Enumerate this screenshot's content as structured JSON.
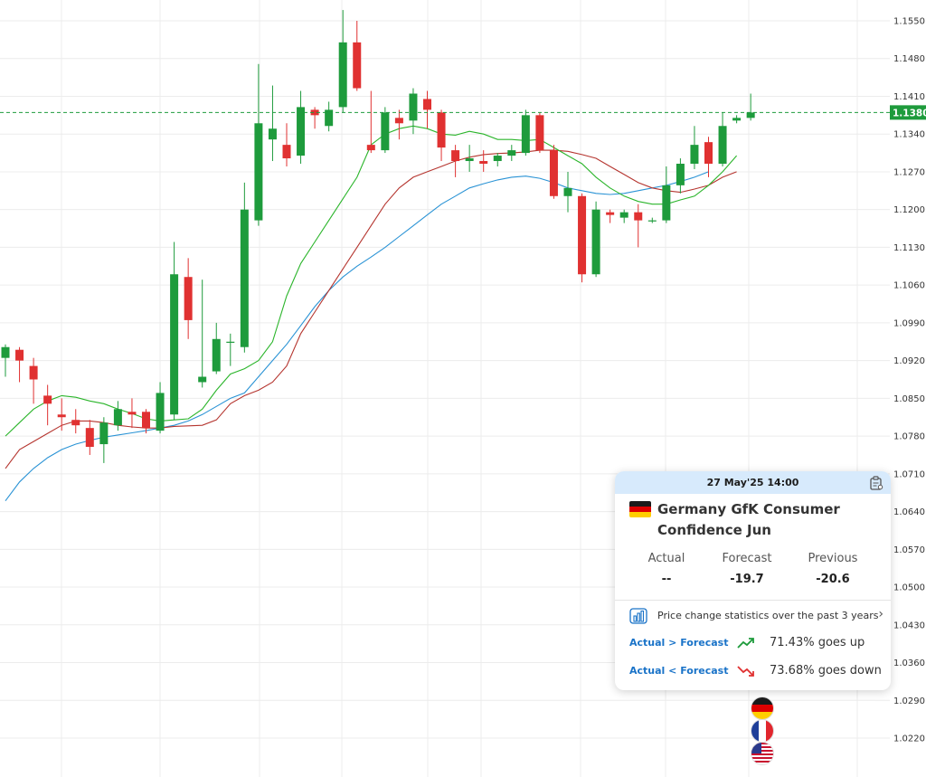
{
  "chart_data": {
    "type": "candlestick",
    "y_ticks": [
      "1.1550",
      "1.1480",
      "1.1410",
      "1.1340",
      "1.1270",
      "1.1200",
      "1.1130",
      "1.1060",
      "1.0990",
      "1.0920",
      "1.0850",
      "1.0780",
      "1.0710",
      "1.0640",
      "1.0570",
      "1.0500",
      "1.0430",
      "1.0360",
      "1.0290",
      "1.0220"
    ],
    "ylim": [
      1.019,
      1.158
    ],
    "current_price": "1.1380",
    "current_price_value": 1.138,
    "colors": {
      "up": "#1e9b3c",
      "down": "#e03131",
      "ma_fast": "#2bb52b",
      "ma_mid": "#b5352f",
      "ma_slow": "#2a93d5",
      "grid": "#ececec"
    },
    "candles": [
      {
        "o": 1.0925,
        "h": 1.095,
        "l": 1.089,
        "c": 1.0945
      },
      {
        "o": 1.094,
        "h": 1.0945,
        "l": 1.088,
        "c": 1.092
      },
      {
        "o": 1.091,
        "h": 1.0925,
        "l": 1.084,
        "c": 1.0885
      },
      {
        "o": 1.0855,
        "h": 1.0875,
        "l": 1.08,
        "c": 1.084
      },
      {
        "o": 1.082,
        "h": 1.085,
        "l": 1.079,
        "c": 1.0815
      },
      {
        "o": 1.081,
        "h": 1.083,
        "l": 1.0785,
        "c": 1.08
      },
      {
        "o": 1.0795,
        "h": 1.081,
        "l": 1.0745,
        "c": 1.076
      },
      {
        "o": 1.0765,
        "h": 1.0815,
        "l": 1.073,
        "c": 1.0805
      },
      {
        "o": 1.08,
        "h": 1.0845,
        "l": 1.079,
        "c": 1.083
      },
      {
        "o": 1.0825,
        "h": 1.085,
        "l": 1.0795,
        "c": 1.082
      },
      {
        "o": 1.0825,
        "h": 1.083,
        "l": 1.0785,
        "c": 1.0795
      },
      {
        "o": 1.079,
        "h": 1.088,
        "l": 1.0785,
        "c": 1.086
      },
      {
        "o": 1.082,
        "h": 1.114,
        "l": 1.081,
        "c": 1.108
      },
      {
        "o": 1.1075,
        "h": 1.111,
        "l": 1.096,
        "c": 1.0995
      },
      {
        "o": 1.088,
        "h": 1.107,
        "l": 1.087,
        "c": 1.089
      },
      {
        "o": 1.09,
        "h": 1.099,
        "l": 1.0895,
        "c": 1.096
      },
      {
        "o": 1.0955,
        "h": 1.097,
        "l": 1.091,
        "c": 1.0955
      },
      {
        "o": 1.0945,
        "h": 1.125,
        "l": 1.0935,
        "c": 1.12
      },
      {
        "o": 1.118,
        "h": 1.147,
        "l": 1.117,
        "c": 1.136
      },
      {
        "o": 1.133,
        "h": 1.143,
        "l": 1.129,
        "c": 1.135
      },
      {
        "o": 1.132,
        "h": 1.136,
        "l": 1.128,
        "c": 1.1295
      },
      {
        "o": 1.13,
        "h": 1.142,
        "l": 1.1285,
        "c": 1.139
      },
      {
        "o": 1.1385,
        "h": 1.139,
        "l": 1.135,
        "c": 1.1375
      },
      {
        "o": 1.1355,
        "h": 1.14,
        "l": 1.1345,
        "c": 1.1385
      },
      {
        "o": 1.139,
        "h": 1.157,
        "l": 1.138,
        "c": 1.151
      },
      {
        "o": 1.151,
        "h": 1.155,
        "l": 1.142,
        "c": 1.1425
      },
      {
        "o": 1.132,
        "h": 1.142,
        "l": 1.1305,
        "c": 1.131
      },
      {
        "o": 1.131,
        "h": 1.139,
        "l": 1.1305,
        "c": 1.138
      },
      {
        "o": 1.137,
        "h": 1.1385,
        "l": 1.133,
        "c": 1.136
      },
      {
        "o": 1.1365,
        "h": 1.1425,
        "l": 1.134,
        "c": 1.1415
      },
      {
        "o": 1.1405,
        "h": 1.142,
        "l": 1.135,
        "c": 1.1385
      },
      {
        "o": 1.138,
        "h": 1.1385,
        "l": 1.129,
        "c": 1.1315
      },
      {
        "o": 1.131,
        "h": 1.132,
        "l": 1.126,
        "c": 1.129
      },
      {
        "o": 1.129,
        "h": 1.132,
        "l": 1.127,
        "c": 1.1295
      },
      {
        "o": 1.129,
        "h": 1.131,
        "l": 1.127,
        "c": 1.1285
      },
      {
        "o": 1.129,
        "h": 1.1305,
        "l": 1.128,
        "c": 1.13
      },
      {
        "o": 1.13,
        "h": 1.132,
        "l": 1.129,
        "c": 1.131
      },
      {
        "o": 1.1305,
        "h": 1.1385,
        "l": 1.13,
        "c": 1.1375
      },
      {
        "o": 1.1375,
        "h": 1.138,
        "l": 1.1305,
        "c": 1.131
      },
      {
        "o": 1.131,
        "h": 1.132,
        "l": 1.122,
        "c": 1.1225
      },
      {
        "o": 1.1225,
        "h": 1.127,
        "l": 1.1195,
        "c": 1.124
      },
      {
        "o": 1.1225,
        "h": 1.123,
        "l": 1.1065,
        "c": 1.108
      },
      {
        "o": 1.108,
        "h": 1.1215,
        "l": 1.1075,
        "c": 1.12
      },
      {
        "o": 1.1195,
        "h": 1.12,
        "l": 1.1175,
        "c": 1.119
      },
      {
        "o": 1.1185,
        "h": 1.12,
        "l": 1.1175,
        "c": 1.1195
      },
      {
        "o": 1.1195,
        "h": 1.121,
        "l": 1.113,
        "c": 1.118
      },
      {
        "o": 1.118,
        "h": 1.1185,
        "l": 1.1175,
        "c": 1.118
      },
      {
        "o": 1.118,
        "h": 1.128,
        "l": 1.1175,
        "c": 1.1245
      },
      {
        "o": 1.1245,
        "h": 1.1295,
        "l": 1.123,
        "c": 1.1285
      },
      {
        "o": 1.1285,
        "h": 1.1355,
        "l": 1.1275,
        "c": 1.132
      },
      {
        "o": 1.1325,
        "h": 1.1335,
        "l": 1.126,
        "c": 1.1285
      },
      {
        "o": 1.1285,
        "h": 1.138,
        "l": 1.128,
        "c": 1.1355
      },
      {
        "o": 1.1365,
        "h": 1.1375,
        "l": 1.136,
        "c": 1.137
      },
      {
        "o": 1.137,
        "h": 1.1415,
        "l": 1.1365,
        "c": 1.138
      }
    ],
    "ma_fast": [
      1.078,
      1.0805,
      1.083,
      1.0845,
      1.0855,
      1.0852,
      1.0845,
      1.084,
      1.083,
      1.0822,
      1.0812,
      1.0808,
      1.081,
      1.0812,
      1.083,
      1.0865,
      1.0895,
      1.0905,
      1.092,
      1.0955,
      1.104,
      1.11,
      1.114,
      1.118,
      1.122,
      1.126,
      1.132,
      1.134,
      1.135,
      1.1355,
      1.135,
      1.134,
      1.1338,
      1.1345,
      1.134,
      1.133,
      1.133,
      1.1328,
      1.133,
      1.1315,
      1.13,
      1.1285,
      1.126,
      1.124,
      1.1225,
      1.1215,
      1.121,
      1.121,
      1.1218,
      1.1225,
      1.1245,
      1.127,
      1.13
    ],
    "ma_mid": [
      1.072,
      1.0755,
      1.077,
      1.0785,
      1.08,
      1.0808,
      1.0808,
      1.0805,
      1.08,
      1.0797,
      1.0795,
      1.0795,
      1.0798,
      1.0799,
      1.08,
      1.081,
      1.084,
      1.0855,
      1.0865,
      1.088,
      1.091,
      1.097,
      1.101,
      1.105,
      1.109,
      1.113,
      1.117,
      1.121,
      1.124,
      1.126,
      1.127,
      1.128,
      1.129,
      1.1297,
      1.1302,
      1.1304,
      1.1305,
      1.1307,
      1.131,
      1.131,
      1.1308,
      1.1302,
      1.1295,
      1.128,
      1.1265,
      1.125,
      1.124,
      1.1235,
      1.1232,
      1.1238,
      1.1245,
      1.126,
      1.127
    ],
    "ma_slow": [
      1.066,
      1.0695,
      1.072,
      1.074,
      1.0755,
      1.0765,
      1.0772,
      1.0778,
      1.0782,
      1.0786,
      1.079,
      1.0795,
      1.08,
      1.0808,
      1.082,
      1.0835,
      1.085,
      1.086,
      1.089,
      1.092,
      1.095,
      1.0985,
      1.102,
      1.105,
      1.1075,
      1.1095,
      1.1112,
      1.113,
      1.115,
      1.117,
      1.119,
      1.121,
      1.1225,
      1.124,
      1.1248,
      1.1255,
      1.126,
      1.1262,
      1.1258,
      1.125,
      1.124,
      1.1235,
      1.123,
      1.1228,
      1.123,
      1.1235,
      1.124,
      1.1245,
      1.1252,
      1.126,
      1.127
    ]
  },
  "popup": {
    "datetime": "27 May'25 14:00",
    "title": "Germany GfK Consumer Confidence Jun",
    "actual_label": "Actual",
    "forecast_label": "Forecast",
    "previous_label": "Previous",
    "actual_value": "--",
    "forecast_value": "-19.7",
    "previous_value": "-20.6",
    "stats_text": "Price change statistics over the past 3 years",
    "up_condition": "Actual > Forecast",
    "up_text": "71.43% goes up",
    "down_condition": "Actual < Forecast",
    "down_text": "73.68% goes down",
    "up_color": "#1e9b3c",
    "down_color": "#e03131",
    "link_color": "#1a73c8",
    "header_bg": "#d7eafc"
  },
  "event_flags": [
    "germany-flag-icon",
    "france-flag-icon",
    "usa-flag-icon"
  ]
}
